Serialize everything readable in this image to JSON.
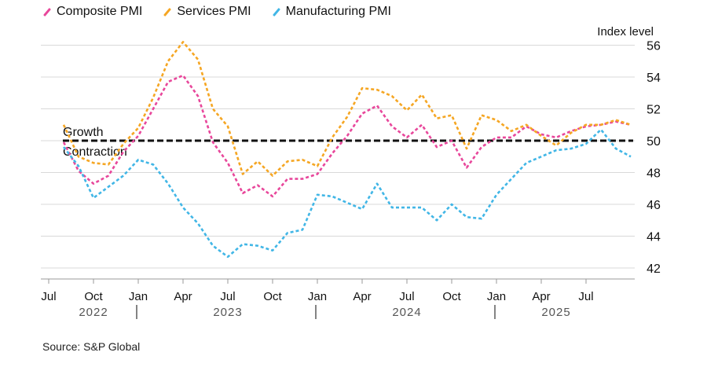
{
  "chart_data": {
    "type": "line",
    "ylabel": "Index level",
    "ylim": [
      41,
      57
    ],
    "yticks": [
      42,
      44,
      46,
      48,
      50,
      52,
      54,
      56
    ],
    "x_months_range": [
      "2022-07",
      "2025-10"
    ],
    "x_tick_labels": [
      {
        "month": "2022-07",
        "label": "Jul"
      },
      {
        "month": "2022-10",
        "label": "Oct"
      },
      {
        "month": "2023-01",
        "label": "Jan"
      },
      {
        "month": "2023-04",
        "label": "Apr"
      },
      {
        "month": "2023-07",
        "label": "Jul"
      },
      {
        "month": "2023-10",
        "label": "Oct"
      },
      {
        "month": "2024-01",
        "label": "Jan"
      },
      {
        "month": "2024-04",
        "label": "Apr"
      },
      {
        "month": "2024-07",
        "label": "Jul"
      },
      {
        "month": "2024-10",
        "label": "Oct"
      },
      {
        "month": "2025-01",
        "label": "Jan"
      },
      {
        "month": "2025-04",
        "label": "Apr"
      },
      {
        "month": "2025-07",
        "label": "Jul"
      }
    ],
    "year_labels": [
      {
        "label": "2022",
        "center_month": "2022-10"
      },
      {
        "label": "2023",
        "center_month": "2023-07"
      },
      {
        "label": "2024",
        "center_month": "2024-07"
      },
      {
        "label": "2025",
        "center_month": "2025-05"
      }
    ],
    "year_separators": [
      "2023-01",
      "2024-01",
      "2025-01"
    ],
    "reference_line": {
      "y": 50,
      "label_above": "Growth",
      "label_below": "Contraction"
    },
    "grid": true,
    "legend_position": "top-left",
    "series": [
      {
        "name": "Composite PMI",
        "color": "#e8479b",
        "x": [
          "2022-08",
          "2022-09",
          "2022-10",
          "2022-11",
          "2022-12",
          "2023-01",
          "2023-02",
          "2023-03",
          "2023-04",
          "2023-05",
          "2023-06",
          "2023-07",
          "2023-08",
          "2023-09",
          "2023-10",
          "2023-11",
          "2023-12",
          "2024-01",
          "2024-02",
          "2024-03",
          "2024-04",
          "2024-05",
          "2024-06",
          "2024-07",
          "2024-08",
          "2024-09",
          "2024-10",
          "2024-11",
          "2024-12",
          "2025-01",
          "2025-02",
          "2025-03",
          "2025-04",
          "2025-05",
          "2025-06",
          "2025-07",
          "2025-08",
          "2025-09",
          "2025-10"
        ],
        "values": [
          49.9,
          48.1,
          47.3,
          47.8,
          49.3,
          50.3,
          52.0,
          53.7,
          54.1,
          52.8,
          49.9,
          48.6,
          46.7,
          47.2,
          46.5,
          47.6,
          47.6,
          47.9,
          49.2,
          50.3,
          51.7,
          52.2,
          50.9,
          50.2,
          51.0,
          49.6,
          50.0,
          48.3,
          49.6,
          50.2,
          50.2,
          50.9,
          50.4,
          50.2,
          50.6,
          50.9,
          51.0,
          51.2,
          51.0
        ]
      },
      {
        "name": "Services PMI",
        "color": "#f5a623",
        "x": [
          "2022-08",
          "2022-09",
          "2022-10",
          "2022-11",
          "2022-12",
          "2023-01",
          "2023-02",
          "2023-03",
          "2023-04",
          "2023-05",
          "2023-06",
          "2023-07",
          "2023-08",
          "2023-09",
          "2023-10",
          "2023-11",
          "2023-12",
          "2024-01",
          "2024-02",
          "2024-03",
          "2024-04",
          "2024-05",
          "2024-06",
          "2024-07",
          "2024-08",
          "2024-09",
          "2024-10",
          "2024-11",
          "2024-12",
          "2025-01",
          "2025-02",
          "2025-03",
          "2025-04",
          "2025-05",
          "2025-06",
          "2025-07",
          "2025-08",
          "2025-09",
          "2025-10"
        ],
        "values": [
          51.0,
          49.0,
          48.6,
          48.5,
          49.8,
          50.8,
          52.7,
          55.0,
          56.2,
          55.1,
          52.0,
          50.9,
          47.9,
          48.7,
          47.8,
          48.7,
          48.8,
          48.4,
          50.2,
          51.5,
          53.3,
          53.2,
          52.8,
          51.9,
          52.9,
          51.4,
          51.6,
          49.5,
          51.6,
          51.3,
          50.6,
          51.0,
          50.3,
          49.7,
          50.5,
          51.0,
          51.0,
          51.3,
          51.0
        ]
      },
      {
        "name": "Manufacturing PMI",
        "color": "#41b6e6",
        "x": [
          "2022-08",
          "2022-09",
          "2022-10",
          "2022-11",
          "2022-12",
          "2023-01",
          "2023-02",
          "2023-03",
          "2023-04",
          "2023-05",
          "2023-06",
          "2023-07",
          "2023-08",
          "2023-09",
          "2023-10",
          "2023-11",
          "2023-12",
          "2024-01",
          "2024-02",
          "2024-03",
          "2024-04",
          "2024-05",
          "2024-06",
          "2024-07",
          "2024-08",
          "2024-09",
          "2024-10",
          "2024-11",
          "2024-12",
          "2025-01",
          "2025-02",
          "2025-03",
          "2025-04",
          "2025-05",
          "2025-06",
          "2025-07",
          "2025-08",
          "2025-09",
          "2025-10"
        ],
        "values": [
          49.6,
          48.4,
          46.4,
          47.1,
          47.8,
          48.8,
          48.5,
          47.3,
          45.8,
          44.8,
          43.4,
          42.7,
          43.5,
          43.4,
          43.1,
          44.2,
          44.4,
          46.6,
          46.5,
          46.1,
          45.7,
          47.3,
          45.8,
          45.8,
          45.8,
          45.0,
          46.0,
          45.2,
          45.1,
          46.6,
          47.6,
          48.6,
          49.0,
          49.4,
          49.5,
          49.8,
          50.7,
          49.5,
          49.0
        ]
      }
    ],
    "source": "Source: S&P Global"
  }
}
